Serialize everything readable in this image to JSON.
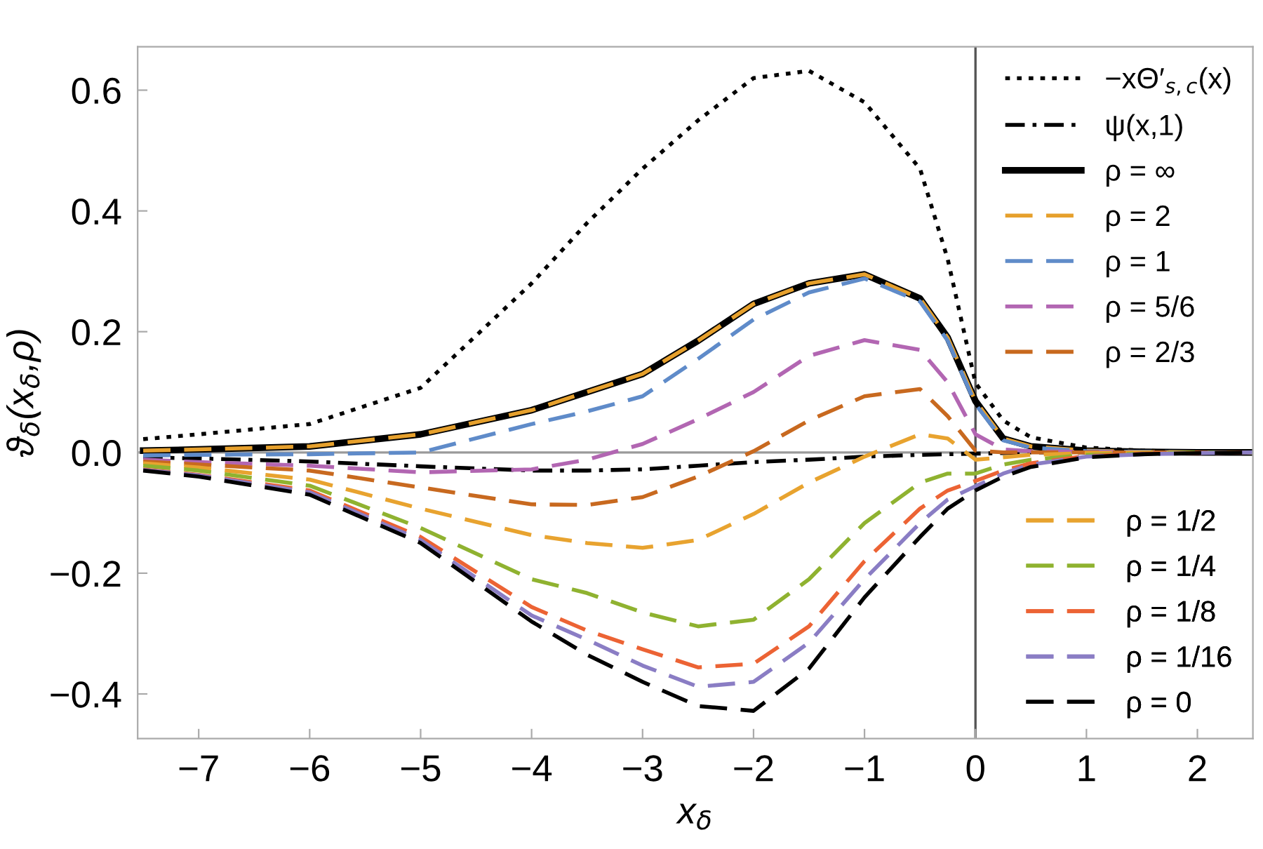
{
  "chart_data": {
    "type": "line",
    "xlabel": "x$_{δ}$",
    "ylabel": "ϑ$_{δ}$(x$_{δ}$,ρ)",
    "x": [
      -7.5,
      -7,
      -6,
      -5,
      -4,
      -3.5,
      -3,
      -2.5,
      -2,
      -1.5,
      -1,
      -0.5,
      -0.25,
      0,
      0.25,
      0.5,
      1,
      1.5,
      2,
      2.5
    ],
    "xlim": [
      -7.55,
      2.5
    ],
    "xticks": [
      {
        "value": -7,
        "label": "−7"
      },
      {
        "value": -6,
        "label": "−6"
      },
      {
        "value": -5,
        "label": "−5"
      },
      {
        "value": -4,
        "label": "−4"
      },
      {
        "value": -3,
        "label": "−3"
      },
      {
        "value": -2,
        "label": "−2"
      },
      {
        "value": -1,
        "label": "−1"
      },
      0,
      1,
      2
    ],
    "ylim": [
      -0.474,
      0.672
    ],
    "yticks": [
      {
        "value": -0.4,
        "label": "−0.4"
      },
      {
        "value": -0.2,
        "label": "−0.2"
      },
      {
        "value": 0,
        "label": "0.0"
      },
      0.2,
      0.4,
      0.6
    ],
    "grid": false,
    "legend": "right",
    "ref_lines": [
      {
        "axis": "y",
        "value": 0,
        "color": "#9a9a9a"
      },
      {
        "axis": "x",
        "value": 0,
        "color": "#555555"
      }
    ],
    "series": [
      {
        "name": "−xΘ′$_{s,c}$(x)",
        "color": "#000000",
        "line_style": "dotted",
        "values": [
          0.022,
          0.03,
          0.047,
          0.107,
          0.28,
          0.38,
          0.47,
          0.55,
          0.62,
          0.632,
          0.58,
          0.47,
          0.32,
          0.115,
          0.053,
          0.025,
          0.008,
          0.003,
          0.001,
          0.0
        ]
      },
      {
        "name": "ψ(x,1)",
        "color": "#000000",
        "line_style": "dashdot",
        "values": [
          -0.008,
          -0.01,
          -0.015,
          -0.023,
          -0.03,
          -0.03,
          -0.028,
          -0.022,
          -0.016,
          -0.012,
          -0.007,
          -0.004,
          -0.003,
          -0.002,
          -0.001,
          0.0,
          0.0,
          0.0,
          0.0,
          0.0
        ]
      },
      {
        "name": "ρ = ∞",
        "color": "#000000",
        "line_style": "solid",
        "values": [
          0.003,
          0.005,
          0.01,
          0.03,
          0.07,
          0.1,
          0.13,
          0.185,
          0.246,
          0.28,
          0.295,
          0.255,
          0.19,
          0.085,
          0.023,
          0.01,
          0.003,
          0.001,
          0.0,
          0.0
        ]
      },
      {
        "name": "ρ = 2",
        "color": "#e6a02c",
        "line_style": "dashed",
        "values": [
          0.003,
          0.005,
          0.01,
          0.03,
          0.07,
          0.1,
          0.13,
          0.185,
          0.246,
          0.28,
          0.295,
          0.255,
          0.19,
          0.085,
          0.023,
          0.01,
          0.003,
          0.001,
          0.0,
          0.0
        ]
      },
      {
        "name": "ρ = 1",
        "color": "#5f8bc9",
        "line_style": "dashed",
        "values": [
          -0.005,
          -0.004,
          -0.003,
          0.0,
          0.047,
          0.068,
          0.093,
          0.155,
          0.22,
          0.265,
          0.288,
          0.25,
          0.185,
          0.08,
          0.02,
          0.008,
          0.002,
          0.001,
          0.0,
          0.0
        ]
      },
      {
        "name": "ρ = 5/6",
        "color": "#b266b2",
        "line_style": "dashed",
        "values": [
          -0.012,
          -0.016,
          -0.022,
          -0.033,
          -0.028,
          -0.012,
          0.014,
          0.055,
          0.1,
          0.16,
          0.186,
          0.17,
          0.116,
          0.03,
          0.005,
          0.002,
          0.001,
          0.0,
          0.0,
          0.0
        ]
      },
      {
        "name": "ρ = 2/3",
        "color": "#c8691f",
        "line_style": "dashed",
        "values": [
          -0.015,
          -0.02,
          -0.03,
          -0.058,
          -0.086,
          -0.087,
          -0.074,
          -0.04,
          0.002,
          0.053,
          0.093,
          0.105,
          0.06,
          0.003,
          0.0,
          0.0,
          0.0,
          0.0,
          0.0,
          0.0
        ]
      },
      {
        "name": "ρ = 1/2",
        "color": "#e8a32f",
        "line_style": "dashed",
        "values": [
          -0.018,
          -0.025,
          -0.045,
          -0.093,
          -0.137,
          -0.15,
          -0.158,
          -0.145,
          -0.102,
          -0.05,
          -0.007,
          0.03,
          0.023,
          -0.012,
          -0.008,
          -0.004,
          -0.001,
          0.0,
          0.0,
          0.0
        ]
      },
      {
        "name": "ρ = 1/4",
        "color": "#8fb230",
        "line_style": "dashed",
        "values": [
          -0.022,
          -0.03,
          -0.055,
          -0.125,
          -0.21,
          -0.233,
          -0.265,
          -0.288,
          -0.277,
          -0.21,
          -0.117,
          -0.05,
          -0.035,
          -0.035,
          -0.02,
          -0.012,
          -0.004,
          -0.002,
          0.0,
          0.0
        ]
      },
      {
        "name": "ρ = 1/8",
        "color": "#ec6334",
        "line_style": "dashed",
        "values": [
          -0.028,
          -0.037,
          -0.063,
          -0.14,
          -0.256,
          -0.295,
          -0.326,
          -0.356,
          -0.35,
          -0.288,
          -0.18,
          -0.093,
          -0.063,
          -0.047,
          -0.03,
          -0.018,
          -0.006,
          -0.002,
          -0.001,
          0.0
        ]
      },
      {
        "name": "ρ = 1/16",
        "color": "#8a7dc4",
        "line_style": "dashed",
        "values": [
          -0.029,
          -0.038,
          -0.066,
          -0.145,
          -0.27,
          -0.31,
          -0.353,
          -0.388,
          -0.38,
          -0.315,
          -0.21,
          -0.117,
          -0.078,
          -0.056,
          -0.035,
          -0.02,
          -0.007,
          -0.003,
          -0.001,
          0.0
        ]
      },
      {
        "name": "ρ = 0",
        "color": "#000000",
        "line_style": "dashed",
        "values": [
          -0.03,
          -0.04,
          -0.07,
          -0.15,
          -0.28,
          -0.335,
          -0.38,
          -0.42,
          -0.428,
          -0.358,
          -0.24,
          -0.14,
          -0.093,
          -0.063,
          -0.04,
          -0.024,
          -0.008,
          -0.003,
          -0.001,
          0.0
        ]
      }
    ]
  }
}
